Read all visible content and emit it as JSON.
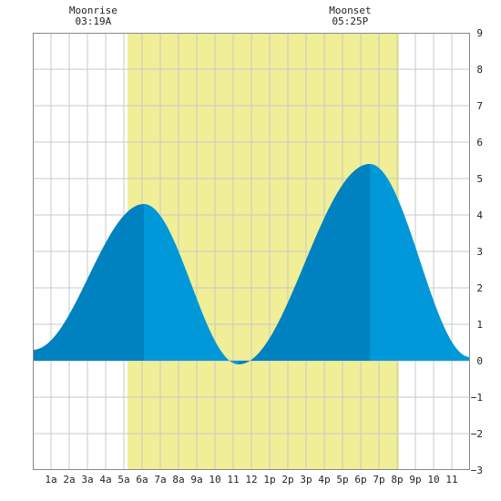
{
  "chart_data": {
    "type": "area",
    "title": "",
    "xlabel": "",
    "ylabel": "",
    "x_range_hours": [
      0,
      24
    ],
    "ylim": [
      -3,
      9
    ],
    "y_ticks": [
      -3,
      -2,
      -1,
      0,
      1,
      2,
      3,
      4,
      5,
      6,
      7,
      8,
      9
    ],
    "x_tick_labels": [
      "1a",
      "2a",
      "3a",
      "4a",
      "5a",
      "6a",
      "7a",
      "8a",
      "9a",
      "10",
      "11",
      "12",
      "1p",
      "2p",
      "3p",
      "4p",
      "5p",
      "6p",
      "7p",
      "8p",
      "9p",
      "10",
      "11"
    ],
    "daylight_hours": [
      5.2,
      20.1
    ],
    "moon": {
      "moonrise": {
        "label": "Moonrise",
        "time": "03:19A",
        "hour": 3.32
      },
      "moonset": {
        "label": "Moonset",
        "time": "05:25P",
        "hour": 17.42
      }
    },
    "tide_extremes": [
      {
        "hour": 0.0,
        "height": 0.3
      },
      {
        "hour": 6.1,
        "height": 4.3
      },
      {
        "hour": 11.3,
        "height": -0.1
      },
      {
        "hour": 18.5,
        "height": 5.4
      },
      {
        "hour": 24.0,
        "height": 0.1
      }
    ],
    "grid": true,
    "colors": {
      "daylight": "#f0ee96",
      "tide_dark": "#0081c0",
      "tide_light": "#0098d8",
      "grid": "#c8c8c8",
      "frame": "#888888"
    }
  }
}
